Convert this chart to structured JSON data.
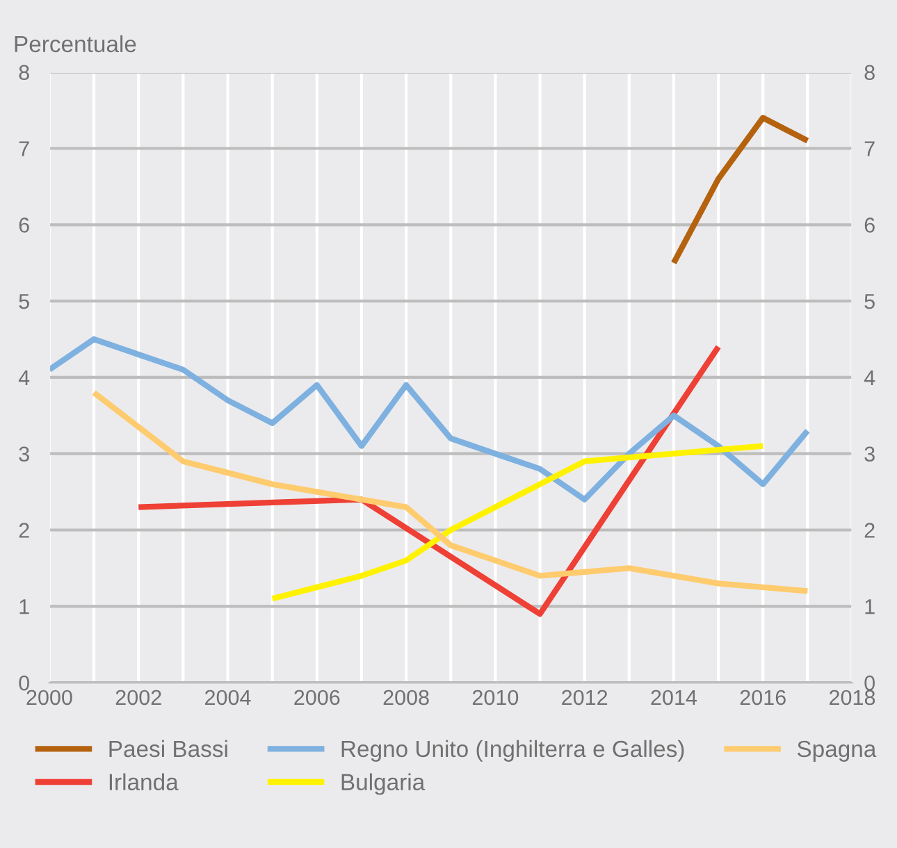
{
  "chart_data": {
    "type": "line",
    "ylabel": "Percentuale",
    "xlim": [
      2000,
      2018
    ],
    "xticks": [
      2000,
      {
        "value": 2001,
        "label": null
      },
      2002,
      {
        "value": 2003,
        "label": null
      },
      2004,
      {
        "value": 2005,
        "label": null
      },
      2006,
      {
        "value": 2007,
        "label": null
      },
      2008,
      {
        "value": 2009,
        "label": null
      },
      2010,
      {
        "value": 2011,
        "label": null
      },
      2012,
      {
        "value": 2013,
        "label": null
      },
      2014,
      {
        "value": 2015,
        "label": null
      },
      2016,
      {
        "value": 2017,
        "label": null
      },
      2018
    ],
    "ylim": [
      0,
      8
    ],
    "yticks": [
      0,
      1,
      2,
      3,
      4,
      5,
      6,
      7,
      8
    ],
    "y2lim": [
      0,
      8
    ],
    "y2ticks": [
      0,
      1,
      2,
      3,
      4,
      5,
      6,
      7,
      8
    ],
    "grid": true,
    "legend": "bottom",
    "marker": "none",
    "line_style": "solid",
    "series": [
      {
        "name": "Paesi Bassi",
        "color": "#b5620f",
        "x": [
          2014,
          2015,
          2016,
          2017
        ],
        "values": [
          5.5,
          6.6,
          7.4,
          7.1
        ]
      },
      {
        "name": "Irlanda",
        "color": "#ee4035",
        "x": [
          2002,
          2007,
          2011,
          2015
        ],
        "values": [
          2.3,
          2.4,
          0.9,
          4.4
        ]
      },
      {
        "name": "Regno Unito (Inghilterra e Galles)",
        "color": "#7eb1e0",
        "x": [
          2000,
          2001,
          2002,
          2003,
          2004,
          2005,
          2006,
          2007,
          2008,
          2009,
          2010,
          2011,
          2012,
          2013,
          2014,
          2015,
          2016,
          2017
        ],
        "values": [
          4.1,
          4.5,
          4.3,
          4.1,
          3.7,
          3.4,
          3.9,
          3.1,
          3.9,
          3.2,
          3.0,
          2.8,
          2.4,
          3.0,
          3.5,
          3.1,
          2.6,
          3.3
        ]
      },
      {
        "name": "Bulgaria",
        "color": "#fff200",
        "x": [
          2005,
          2006,
          2007,
          2008,
          2009,
          2010,
          2011,
          2012,
          2013,
          2014,
          2015,
          2016
        ],
        "values": [
          1.1,
          1.25,
          1.4,
          1.6,
          2.0,
          2.3,
          2.6,
          2.9,
          2.95,
          3.0,
          3.05,
          3.1
        ]
      },
      {
        "name": "Spagna",
        "color": "#fecb6e",
        "x": [
          2001,
          2002,
          2003,
          2004,
          2005,
          2006,
          2007,
          2008,
          2009,
          2010,
          2011,
          2012,
          2013,
          2014,
          2015,
          2016,
          2017
        ],
        "values": [
          3.8,
          3.35,
          2.9,
          2.75,
          2.6,
          2.5,
          2.4,
          2.3,
          1.8,
          1.6,
          1.4,
          1.45,
          1.5,
          1.4,
          1.3,
          1.25,
          1.2
        ]
      }
    ]
  }
}
